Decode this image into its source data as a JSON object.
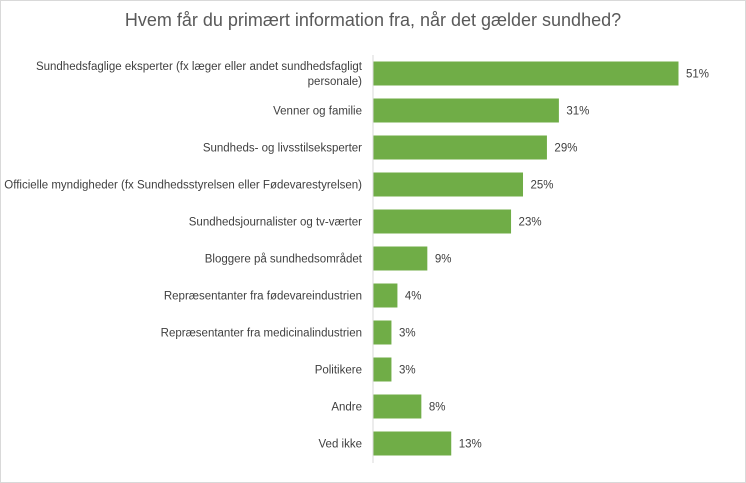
{
  "chart_data": {
    "type": "bar",
    "orientation": "horizontal",
    "title": "Hvem får du primært information fra, når det gælder sundhed?",
    "categories": [
      [
        "Sundhedsfaglige eksperter (fx læger eller andet sundhedsfagligt",
        "personale)"
      ],
      [
        "Venner og familie"
      ],
      [
        "Sundheds- og livsstilseksperter"
      ],
      [
        "Officielle myndigheder (fx Sundhedsstyrelsen eller Fødevarestyrelsen)"
      ],
      [
        "Sundhedsjournalister og tv-værter"
      ],
      [
        "Bloggere på sundhedsområdet"
      ],
      [
        "Repræsentanter fra fødevareindustrien"
      ],
      [
        "Repræsentanter fra medicinalindustrien"
      ],
      [
        "Politikere"
      ],
      [
        "Andre"
      ],
      [
        "Ved ikke"
      ]
    ],
    "values": [
      51,
      31,
      29,
      25,
      23,
      9,
      4,
      3,
      3,
      8,
      13
    ],
    "value_labels": [
      "51%",
      "31%",
      "29%",
      "25%",
      "23%",
      "9%",
      "4%",
      "3%",
      "3%",
      "8%",
      "13%"
    ],
    "unit": "%",
    "xlim": [
      0,
      51
    ],
    "grid": false,
    "legend": "none",
    "bar_color": "#70ad47",
    "axis_color": "#d9d9d9"
  }
}
